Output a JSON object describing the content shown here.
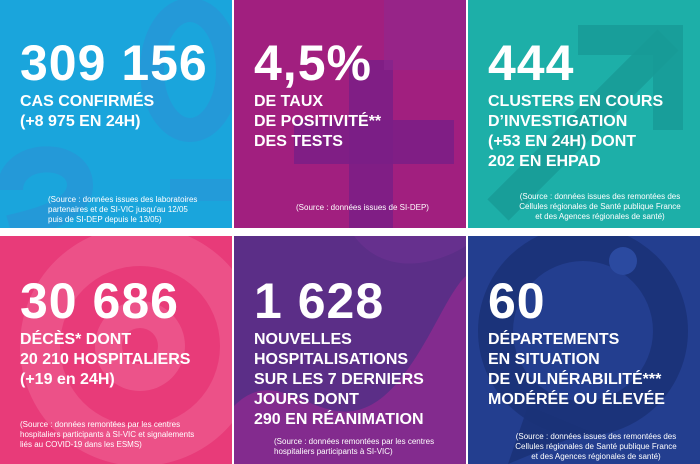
{
  "colors": {
    "tile1": "#1aa5dc",
    "tile2": "#a11f7f",
    "tile3": "#1dafa8",
    "tile4": "#e83b79",
    "tile5": "#5b2e87",
    "tile6": "#233e8f"
  },
  "tiles": [
    {
      "id": "cases",
      "icon": "number-2-0-watermark",
      "value": "309 156",
      "lines": [
        "CAS CONFIRMÉS",
        "(+8 975 EN 24H)"
      ],
      "source": [
        "(Source : données issues des laboratoires",
        "partenaires et de SI-VIC jusqu'au 12/05",
        "puis de SI-DEP depuis le 13/05)"
      ]
    },
    {
      "id": "positivity",
      "icon": "plus-sign-watermark",
      "value": "4,5%",
      "lines": [
        "DE TAUX",
        "DE POSITIVITÉ**",
        "DES TESTS"
      ],
      "source": [
        "(Source : données issues de SI-DEP)"
      ]
    },
    {
      "id": "clusters",
      "icon": "arrow-up-right-watermark",
      "value": "444",
      "lines": [
        "CLUSTERS EN COURS",
        "D’INVESTIGATION",
        "(+53 EN 24H) DONT",
        "202 EN EHPAD"
      ],
      "source": [
        "(Source : données issues des remontées des",
        "Cellules régionales de Santé publique France",
        "et des Agences régionales de santé)"
      ]
    },
    {
      "id": "deaths",
      "icon": "concentric-circles-watermark",
      "value": "30 686",
      "lines": [
        "DÉCÈS* DONT",
        "20 210 HOSPITALIERS",
        "(+19 en 24H)"
      ],
      "source": [
        "(Source : données remontées par les centres",
        "hospitaliers participants à SI-VIC et signalements",
        "liés au COVID-19 dans les ESMS)"
      ]
    },
    {
      "id": "hospitalisations",
      "icon": "wave-shape-watermark",
      "value": "1 628",
      "lines": [
        "NOUVELLES",
        "HOSPITALISATIONS",
        "SUR LES 7 DERNIERS",
        "JOURS DONT",
        "290 EN RÉANIMATION"
      ],
      "source": [
        "(Source : données remontées par les centres",
        "hospitaliers participants à SI-VIC)"
      ]
    },
    {
      "id": "departments",
      "icon": "map-pin-watermark",
      "value": "60",
      "lines": [
        "DÉPARTEMENTS",
        "EN SITUATION",
        "DE VULNÉRABILITÉ***",
        "MODÉRÉE OU ÉLEVÉE"
      ],
      "source": [
        "(Source : données issues des remontées des",
        "Cellules régionales de Santé publique France",
        "et des Agences régionales de santé)"
      ]
    }
  ]
}
